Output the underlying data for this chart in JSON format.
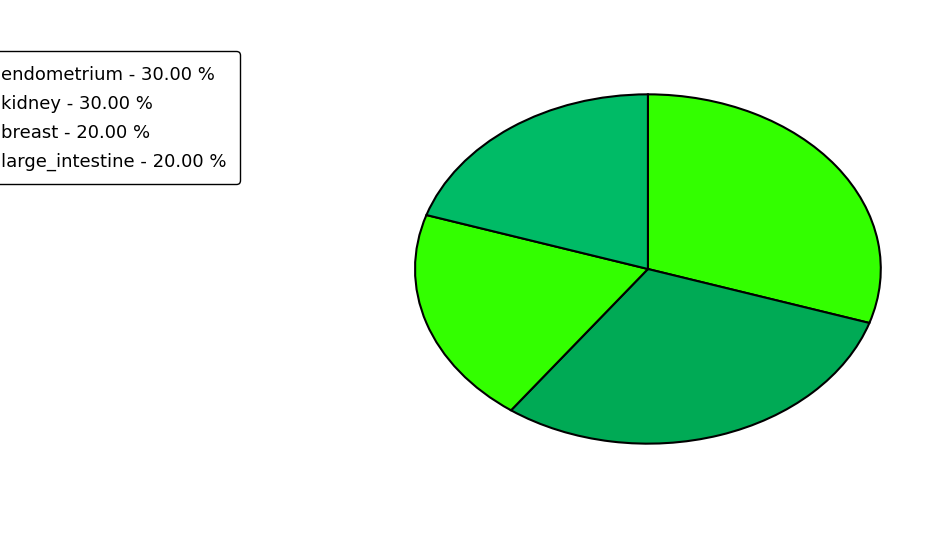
{
  "labels": [
    "endometrium",
    "kidney",
    "breast",
    "large_intestine"
  ],
  "values": [
    30,
    30,
    20,
    20
  ],
  "colors": [
    "#00ee00",
    "#00aa55",
    "#00ee00",
    "#00aa55"
  ],
  "pie_colors": [
    "#00ee00",
    "#00aa55",
    "#33dd33",
    "#00bb66"
  ],
  "legend_colors": [
    "#44ee00",
    "#009955",
    "#44ee00",
    "#009966"
  ],
  "legend_labels": [
    "endometrium - 30.00 %",
    "kidney - 30.00 %",
    "breast - 20.00 %",
    "large_intestine - 20.00 %"
  ],
  "startangle": 90,
  "figsize": [
    9.39,
    5.38
  ],
  "dpi": 100
}
